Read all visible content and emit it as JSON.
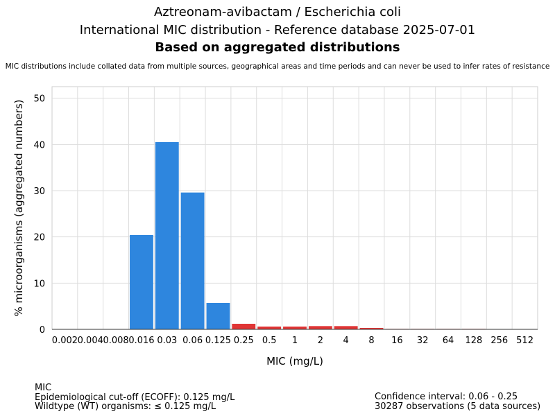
{
  "header": {
    "title_line1": "Aztreonam-avibactam / Escherichia coli",
    "title_line2": "International MIC distribution - Reference database 2025-07-01",
    "title_line3": "Based on aggregated distributions",
    "note": "MIC distributions include collated data from multiple sources, geographical areas and time periods and can never be used to infer rates of resistance"
  },
  "chart_data": {
    "type": "bar",
    "xlabel": "MIC (mg/L)",
    "ylabel": "% microorganisms (aggregated numbers)",
    "ylim": [
      0,
      52.5
    ],
    "yticks": [
      0,
      10,
      20,
      30,
      40,
      50
    ],
    "grid": true,
    "categories": [
      "0.002",
      "0.004",
      "0.008",
      "0.016",
      "0.03",
      "0.06",
      "0.125",
      "0.25",
      "0.5",
      "1",
      "2",
      "4",
      "8",
      "16",
      "32",
      "64",
      "128",
      "256",
      "512"
    ],
    "values": [
      0,
      0,
      0,
      20.4,
      40.5,
      29.6,
      5.7,
      1.2,
      0.6,
      0.6,
      0.7,
      0.7,
      0.3,
      0.1,
      0.1,
      0.1,
      0.1,
      0,
      0
    ],
    "colors": [
      "#2e86de",
      "#2e86de",
      "#2e86de",
      "#2e86de",
      "#2e86de",
      "#2e86de",
      "#2e86de",
      "#e03535",
      "#e03535",
      "#e03535",
      "#e03535",
      "#e03535",
      "#e03535",
      "#e03535",
      "#e03535",
      "#e03535",
      "#e03535",
      "#e03535",
      "#e03535"
    ],
    "wildtype_color": "#2e86de",
    "non_wildtype_color": "#e03535"
  },
  "footer": {
    "left": {
      "line1": "MIC",
      "line2": "Epidemiological cut-off (ECOFF): 0.125 mg/L",
      "line3": "Wildtype (WT) organisms: ≤ 0.125 mg/L"
    },
    "right": {
      "line1": "Confidence interval: 0.06 - 0.25",
      "line2": "30287 observations (5 data sources)"
    }
  }
}
